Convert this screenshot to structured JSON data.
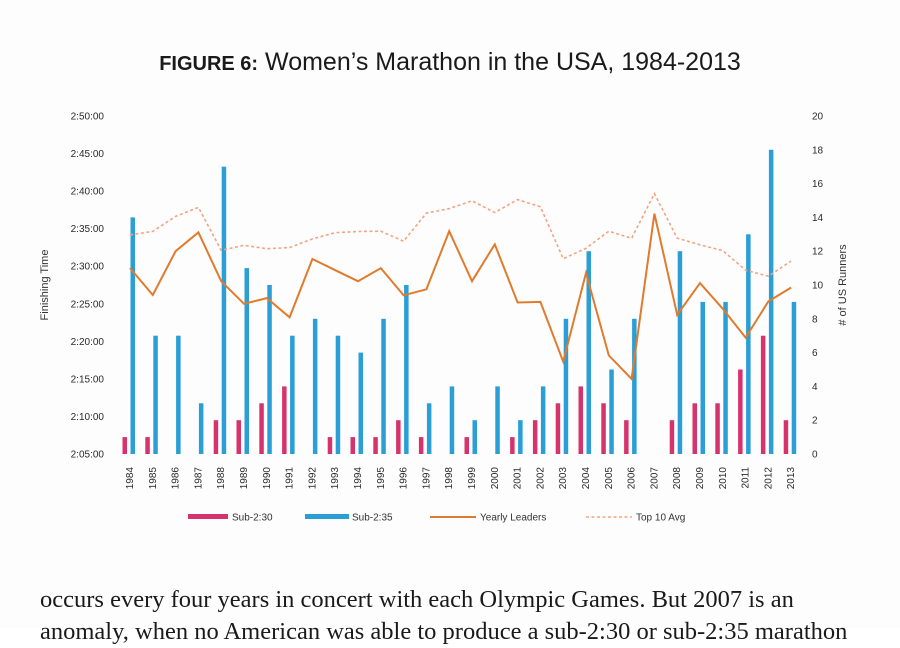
{
  "figure": {
    "label": "FIGURE 6:",
    "title": "Women’s Marathon in the USA, 1984-2013"
  },
  "body_text": {
    "line1": "occurs every four years in concert with each Olympic Games. But 2007 is an",
    "line2": "anomaly, when no American was able to produce a sub-2:30 or sub-2:35 marathon"
  },
  "colors": {
    "sub230": "#d6336c",
    "sub235": "#2a9fd6",
    "yearly_leaders": "#e07b2e",
    "top10": "#f2a483"
  },
  "chart_data": {
    "type": "bar",
    "title": "Women’s Marathon in the USA, 1984-2013",
    "ylabel": "Finishing Time",
    "y2label": "# of US Runners",
    "y_ticks": [
      "2:05:00",
      "2:10:00",
      "2:15:00",
      "2:20:00",
      "2:25:00",
      "2:30:00",
      "2:35:00",
      "2:40:00",
      "2:45:00",
      "2:50:00"
    ],
    "y_ticks_seconds": [
      7500,
      7800,
      8100,
      8400,
      8700,
      9000,
      9300,
      9600,
      9900,
      10200
    ],
    "ylim_seconds": [
      7500,
      10200
    ],
    "y2_ticks": [
      "0",
      "2",
      "4",
      "6",
      "8",
      "10",
      "12",
      "14",
      "16",
      "18",
      "20"
    ],
    "y2lim": [
      0,
      20
    ],
    "categories": [
      "1984",
      "1985",
      "1986",
      "1987",
      "1988",
      "1989",
      "1990",
      "1991",
      "1992",
      "1993",
      "1994",
      "1995",
      "1996",
      "1997",
      "1998",
      "1999",
      "2000",
      "2001",
      "2002",
      "2003",
      "2004",
      "2005",
      "2006",
      "2007",
      "2008",
      "2009",
      "2010",
      "2011",
      "2012",
      "2013"
    ],
    "bar_series": [
      {
        "name": "Sub-2:30",
        "values": [
          1,
          1,
          0,
          0,
          2,
          2,
          3,
          4,
          0,
          1,
          1,
          1,
          2,
          1,
          0,
          1,
          0,
          1,
          2,
          3,
          4,
          3,
          2,
          0,
          2,
          3,
          3,
          5,
          7,
          2
        ]
      },
      {
        "name": "Sub-2:35",
        "values": [
          14,
          7,
          7,
          3,
          17,
          11,
          10,
          7,
          8,
          7,
          6,
          8,
          10,
          3,
          4,
          2,
          4,
          2,
          4,
          8,
          12,
          5,
          8,
          0,
          12,
          9,
          9,
          13,
          18,
          9
        ]
      }
    ],
    "line_series": [
      {
        "name": "Yearly Leaders",
        "style": "solid",
        "values": [
          8985,
          8770,
          9120,
          9270,
          8880,
          8700,
          8745,
          8592,
          9058,
          8968,
          8880,
          8985,
          8768,
          8816,
          9280,
          8880,
          9175,
          8710,
          8715,
          8238,
          8946,
          8288,
          8100,
          9420,
          8612,
          8865,
          8660,
          8430,
          8719,
          8830
        ]
      },
      {
        "name": "Top 10 Avg",
        "style": "dashed",
        "values": [
          9250,
          9278,
          9398,
          9470,
          9127,
          9167,
          9140,
          9149,
          9218,
          9268,
          9277,
          9280,
          9200,
          9424,
          9460,
          9523,
          9429,
          9532,
          9475,
          9060,
          9143,
          9280,
          9223,
          9580,
          9225,
          9171,
          9125,
          8968,
          8920,
          9042
        ]
      }
    ],
    "legend": [
      "Sub-2:30",
      "Sub-2:35",
      "Yearly Leaders",
      "Top 10 Avg"
    ],
    "legend_position": "bottom",
    "grid": false
  }
}
